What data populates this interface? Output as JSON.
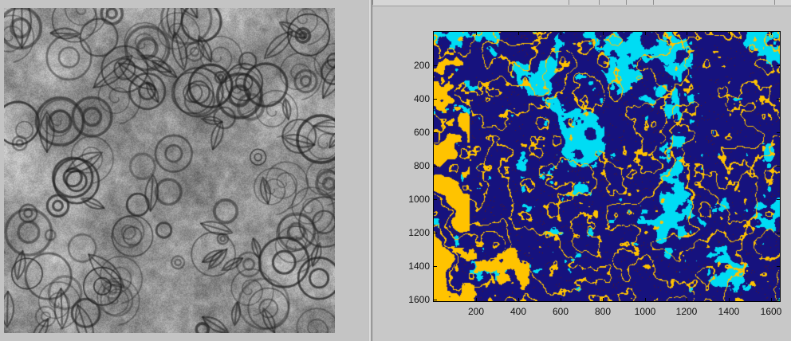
{
  "window": {
    "background": "#c8c8c8"
  },
  "left_panel": {
    "image_name": "grayscale-floral-texture",
    "image_colors": [
      "#ffffff",
      "#bdbdbd",
      "#5a5a5a",
      "#1e1e1e"
    ]
  },
  "right_panel": {
    "colormap": {
      "background": "#16127e",
      "dark_spots": "#5b1a1a",
      "cyan": "#00dcf4",
      "yellow": "#ffc300"
    },
    "x_tick_labels": [
      "200",
      "400",
      "600",
      "800",
      "1000",
      "1200",
      "1400",
      "1600"
    ],
    "y_tick_labels": [
      "200",
      "400",
      "600",
      "800",
      "1000",
      "1200",
      "1400",
      "1600"
    ]
  },
  "chart_data": {
    "type": "heatmap",
    "title": "",
    "xlabel": "",
    "ylabel": "",
    "xlim": [
      1,
      1640
    ],
    "ylim": [
      1,
      1610
    ],
    "y_direction": "reverse",
    "x_ticks": [
      200,
      400,
      600,
      800,
      1000,
      1200,
      1400,
      1600
    ],
    "y_ticks": [
      200,
      400,
      600,
      800,
      1000,
      1200,
      1400,
      1600
    ],
    "cluster_labels": [
      1,
      2,
      3
    ],
    "cluster_colors": [
      "#16127e",
      "#00dcf4",
      "#ffc300"
    ],
    "grid": false,
    "legend": "none"
  }
}
